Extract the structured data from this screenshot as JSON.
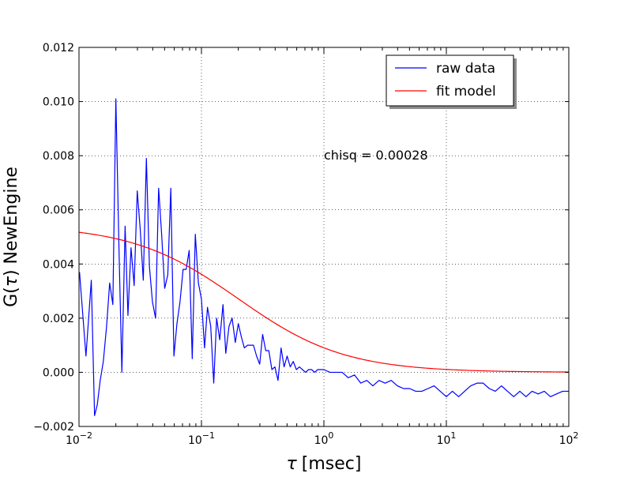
{
  "chart_data": {
    "type": "line",
    "xlabel_symbol": "τ",
    "xlabel_unit": "[msec]",
    "ylabel_prefix": "G(",
    "ylabel_symbol": "τ",
    "ylabel_suffix": ") NewEngine",
    "x_scale": "log",
    "xlim": [
      0.01,
      100
    ],
    "ylim": [
      -0.002,
      0.012
    ],
    "grid": true,
    "legend_position": "top-right",
    "x_ticks": [
      {
        "value": 0.01,
        "base": "10",
        "exp": "−2"
      },
      {
        "value": 0.1,
        "base": "10",
        "exp": "−1"
      },
      {
        "value": 1,
        "base": "10",
        "exp": "0"
      },
      {
        "value": 10,
        "base": "10",
        "exp": "1"
      },
      {
        "value": 100,
        "base": "10",
        "exp": "2"
      }
    ],
    "y_ticks": [
      {
        "value": -0.002,
        "label": "−0.002"
      },
      {
        "value": 0.0,
        "label": "0.000"
      },
      {
        "value": 0.002,
        "label": "0.002"
      },
      {
        "value": 0.004,
        "label": "0.004"
      },
      {
        "value": 0.006,
        "label": "0.006"
      },
      {
        "value": 0.008,
        "label": "0.008"
      },
      {
        "value": 0.01,
        "label": "0.010"
      },
      {
        "value": 0.012,
        "label": "0.012"
      }
    ],
    "annotation": {
      "text": "chisq = 0.00028",
      "x": 1.0,
      "y": 0.008
    },
    "series": [
      {
        "name": "raw data",
        "color": "#0000ff",
        "x": [
          0.0101,
          0.0114,
          0.0126,
          0.0134,
          0.0141,
          0.0149,
          0.0158,
          0.0168,
          0.0178,
          0.0189,
          0.02,
          0.0212,
          0.0224,
          0.0238,
          0.0251,
          0.0266,
          0.0282,
          0.0299,
          0.0316,
          0.0335,
          0.0355,
          0.0376,
          0.0398,
          0.0422,
          0.0447,
          0.0473,
          0.0501,
          0.0531,
          0.0562,
          0.0596,
          0.0631,
          0.0668,
          0.0708,
          0.075,
          0.0794,
          0.0841,
          0.0891,
          0.0944,
          0.1,
          0.106,
          0.112,
          0.119,
          0.126,
          0.133,
          0.141,
          0.15,
          0.158,
          0.168,
          0.178,
          0.189,
          0.2,
          0.212,
          0.224,
          0.238,
          0.251,
          0.266,
          0.282,
          0.299,
          0.316,
          0.335,
          0.355,
          0.376,
          0.398,
          0.422,
          0.447,
          0.473,
          0.501,
          0.531,
          0.562,
          0.596,
          0.631,
          0.668,
          0.708,
          0.75,
          0.794,
          0.841,
          0.891,
          1.0,
          1.12,
          1.26,
          1.41,
          1.58,
          1.78,
          2.0,
          2.24,
          2.51,
          2.82,
          3.16,
          3.55,
          3.98,
          4.47,
          5.01,
          5.62,
          6.31,
          7.08,
          7.94,
          8.91,
          10.0,
          11.2,
          12.6,
          14.1,
          15.8,
          17.8,
          20.0,
          22.4,
          25.1,
          28.2,
          31.6,
          35.5,
          39.8,
          44.7,
          50.1,
          56.2,
          63.1,
          70.8,
          79.4,
          89.1,
          100.0
        ],
        "y": [
          0.0037,
          0.0006,
          0.0034,
          -0.0016,
          -0.0012,
          -0.0003,
          0.0004,
          0.0017,
          0.0033,
          0.0025,
          0.0101,
          0.0046,
          0.0,
          0.0054,
          0.0021,
          0.0046,
          0.0032,
          0.0067,
          0.0053,
          0.0034,
          0.0079,
          0.0039,
          0.0026,
          0.002,
          0.0068,
          0.0051,
          0.0031,
          0.0036,
          0.0068,
          0.0006,
          0.0018,
          0.0026,
          0.0038,
          0.0038,
          0.0045,
          0.0005,
          0.0051,
          0.0033,
          0.0027,
          0.0009,
          0.0024,
          0.0017,
          -0.0004,
          0.002,
          0.0012,
          0.0025,
          0.0007,
          0.0017,
          0.002,
          0.0011,
          0.0018,
          0.0013,
          0.0009,
          0.001,
          0.001,
          0.001,
          0.0006,
          0.0003,
          0.0014,
          0.0008,
          0.0008,
          0.0001,
          0.0002,
          -0.0003,
          0.0009,
          0.0002,
          0.0006,
          0.0002,
          0.0004,
          0.0001,
          0.0002,
          0.0001,
          0.0,
          0.0001,
          0.0001,
          0.0,
          0.0001,
          0.0001,
          0.0,
          0.0,
          0.0,
          -0.0002,
          -0.0001,
          -0.0004,
          -0.0003,
          -0.0005,
          -0.0003,
          -0.0004,
          -0.0003,
          -0.0005,
          -0.0006,
          -0.0006,
          -0.0007,
          -0.0007,
          -0.0006,
          -0.0005,
          -0.0007,
          -0.0009,
          -0.0007,
          -0.0009,
          -0.0007,
          -0.0005,
          -0.0004,
          -0.0004,
          -0.0006,
          -0.0007,
          -0.0005,
          -0.0007,
          -0.0009,
          -0.0007,
          -0.0009,
          -0.0007,
          -0.0008,
          -0.0007,
          -0.0009,
          -0.0008,
          -0.0007,
          -0.0007
        ]
      },
      {
        "name": "fit model",
        "color": "#ff0000",
        "model": {
          "amplitude": 0.00543,
          "tau_d": 0.2
        }
      }
    ]
  }
}
